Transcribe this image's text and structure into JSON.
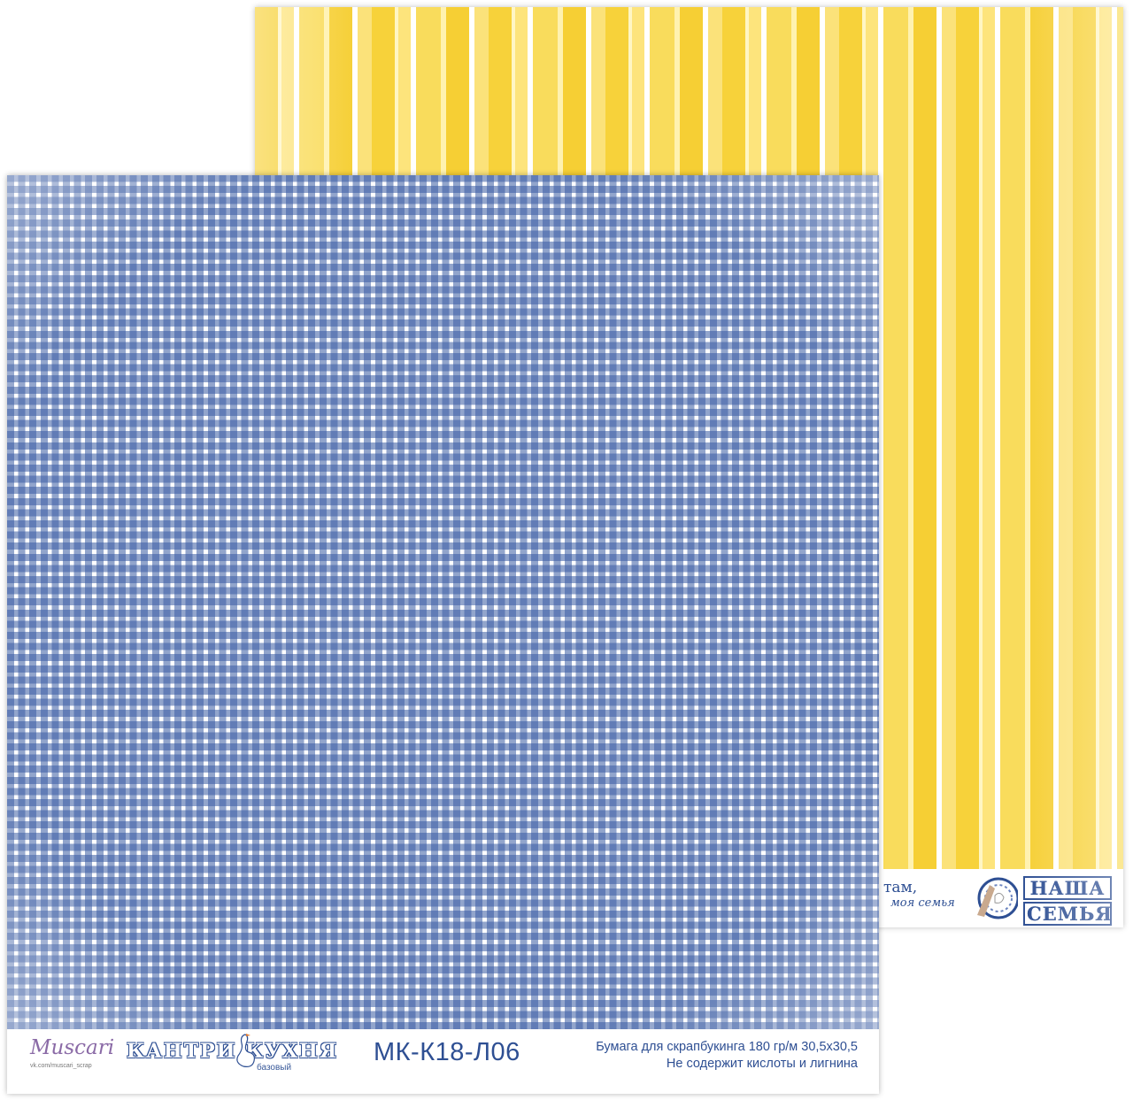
{
  "colors": {
    "stripe_yellow": "#f7d23a",
    "gingham_blue": "#395ba3",
    "text_blue": "#2e4f93",
    "brand_purple": "#8a6aa6"
  },
  "back_sheet": {
    "pattern": "vertical yellow and white stripes",
    "phrase_line1": "там,",
    "phrase_line2": "моя семья",
    "logo_line1": "НАША",
    "logo_line2": "СЕМЬЯ",
    "icon": "plate-icon"
  },
  "front_sheet": {
    "pattern": "blue and white gingham",
    "brand": "Muscari",
    "brand_url": "vk.com/muscari_scrap",
    "collection_title": "КАНТРИ КУХНЯ",
    "collection_subtitle": "базовый",
    "product_code": "МК-К18-Л06",
    "info_line1": "Бумага для скрапбукинга 180 гр/м 30,5х30,5",
    "info_line2": "Не содержит кислоты и лигнина",
    "icon": "goose-icon"
  }
}
